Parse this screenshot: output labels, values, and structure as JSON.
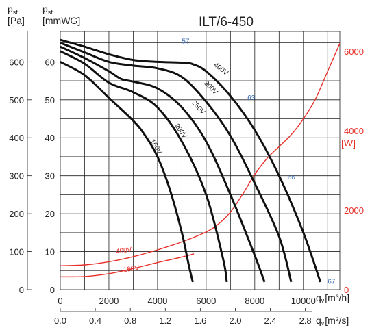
{
  "chart_data": {
    "type": "line",
    "title": "ILT/6-450",
    "y_left_labels": {
      "pa": {
        "symbol": "p",
        "sub": "sf",
        "unit": "[Pa]"
      },
      "mmwg": {
        "symbol": "p",
        "sub": "sf",
        "unit": "[mmWG]"
      }
    },
    "y_right_label": "[W]",
    "x_unit_flow": "q",
    "x_sub_flow": "v",
    "x_unit_m3h": "[m³/h]",
    "x_unit_m3s": "[m³/s]",
    "xlim_m3h": [
      0,
      11500
    ],
    "ylim_pa": [
      0,
      680
    ],
    "ylim_w": [
      0,
      6500
    ],
    "x_ticks_m3h": [
      "0",
      "2000",
      "4000",
      "6000",
      "8000",
      "10000"
    ],
    "x_ticks_m3s": [
      "0.0",
      "0.4",
      "0.8",
      "1.2",
      "1.6",
      "2.0",
      "2.4",
      "2.8"
    ],
    "y_ticks_pa": [
      "0",
      "100",
      "200",
      "300",
      "400",
      "500",
      "600"
    ],
    "y_ticks_mmwg": [
      "0",
      "10",
      "20",
      "30",
      "40",
      "50",
      "60"
    ],
    "y_ticks_w": [
      "0",
      "2000",
      "4000",
      "6000"
    ],
    "pressure_series": [
      {
        "name": "400V",
        "points": [
          [
            0,
            658
          ],
          [
            1000,
            640
          ],
          [
            2000,
            620
          ],
          [
            3000,
            605
          ],
          [
            4000,
            600
          ],
          [
            5000,
            598
          ],
          [
            5400,
            595
          ],
          [
            6000,
            575
          ],
          [
            7000,
            510
          ],
          [
            8000,
            420
          ],
          [
            9000,
            300
          ],
          [
            10000,
            150
          ],
          [
            10700,
            20
          ]
        ]
      },
      {
        "name": "300V",
        "points": [
          [
            0,
            650
          ],
          [
            1000,
            625
          ],
          [
            2000,
            600
          ],
          [
            3000,
            590
          ],
          [
            4000,
            583
          ],
          [
            5000,
            560
          ],
          [
            6000,
            495
          ],
          [
            7000,
            405
          ],
          [
            8000,
            280
          ],
          [
            9000,
            140
          ],
          [
            9500,
            20
          ]
        ]
      },
      {
        "name": "250V",
        "points": [
          [
            0,
            640
          ],
          [
            1000,
            610
          ],
          [
            2000,
            575
          ],
          [
            2500,
            555
          ],
          [
            3000,
            548
          ],
          [
            4000,
            530
          ],
          [
            5000,
            480
          ],
          [
            6000,
            390
          ],
          [
            7000,
            250
          ],
          [
            8000,
            90
          ],
          [
            8400,
            20
          ]
        ]
      },
      {
        "name": "200V",
        "points": [
          [
            0,
            628
          ],
          [
            1000,
            595
          ],
          [
            2000,
            545
          ],
          [
            3000,
            520
          ],
          [
            4000,
            480
          ],
          [
            5000,
            390
          ],
          [
            6000,
            250
          ],
          [
            6700,
            80
          ],
          [
            6850,
            20
          ]
        ]
      },
      {
        "name": "160V",
        "points": [
          [
            0,
            600
          ],
          [
            1000,
            565
          ],
          [
            2000,
            505
          ],
          [
            3000,
            445
          ],
          [
            3500,
            405
          ],
          [
            4000,
            350
          ],
          [
            4500,
            265
          ],
          [
            5000,
            150
          ],
          [
            5300,
            60
          ],
          [
            5450,
            20
          ]
        ]
      }
    ],
    "power_series": [
      {
        "name": "400V",
        "points": [
          [
            0,
            600
          ],
          [
            1000,
            620
          ],
          [
            2000,
            700
          ],
          [
            3000,
            830
          ],
          [
            4000,
            1000
          ],
          [
            5000,
            1200
          ],
          [
            6000,
            1450
          ],
          [
            6500,
            1650
          ],
          [
            7000,
            1950
          ],
          [
            7500,
            2400
          ],
          [
            8000,
            2900
          ],
          [
            8500,
            3300
          ],
          [
            9000,
            3600
          ],
          [
            9500,
            3900
          ],
          [
            10000,
            4300
          ],
          [
            10500,
            4800
          ],
          [
            11000,
            5500
          ],
          [
            11500,
            6200
          ]
        ]
      },
      {
        "name": "160V",
        "points": [
          [
            0,
            320
          ],
          [
            1000,
            330
          ],
          [
            2000,
            400
          ],
          [
            3000,
            530
          ],
          [
            4000,
            680
          ],
          [
            5000,
            820
          ],
          [
            5500,
            900
          ]
        ]
      }
    ],
    "efficiency_labels": [
      {
        "text": "57",
        "x": 5000,
        "y": 648
      },
      {
        "text": "63",
        "x": 7700,
        "y": 500
      },
      {
        "text": "66",
        "x": 9350,
        "y": 290
      },
      {
        "text": "67",
        "x": 11000,
        "y": 15
      }
    ],
    "curve_labels": [
      {
        "text": "400V",
        "x": 6300,
        "y": 590,
        "rot": 38
      },
      {
        "text": "300V",
        "x": 5900,
        "y": 543,
        "rot": 45
      },
      {
        "text": "250V",
        "x": 5400,
        "y": 492,
        "rot": 48
      },
      {
        "text": "200V",
        "x": 4700,
        "y": 432,
        "rot": 55
      },
      {
        "text": "160V",
        "x": 3700,
        "y": 392,
        "rot": 60
      }
    ],
    "power_labels": [
      {
        "text": "400V",
        "x": 2300,
        "y": 900,
        "rot": -8
      },
      {
        "text": "160V",
        "x": 2600,
        "y": 440,
        "rot": -8
      }
    ],
    "grid": true
  }
}
